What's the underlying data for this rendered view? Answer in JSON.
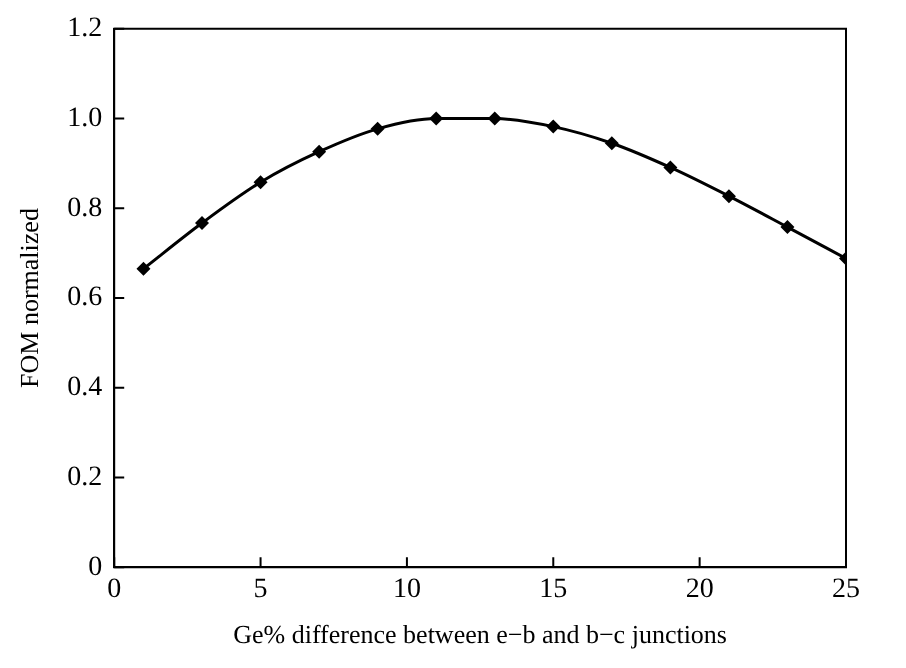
{
  "chart_data": {
    "type": "line",
    "xlabel": "Ge% difference between e−b and b−c junctions",
    "ylabel": "FOM normalized",
    "x": [
      1,
      3,
      5,
      7,
      9,
      11,
      13,
      15,
      17,
      19,
      21,
      23,
      25
    ],
    "series": [
      {
        "color": "#000000",
        "values": [
          0.665,
          0.767,
          0.858,
          0.926,
          0.977,
          1.0,
          1.0,
          0.982,
          0.945,
          0.891,
          0.827,
          0.758,
          0.688
        ]
      }
    ],
    "xlim": [
      0,
      25
    ],
    "xticks": [
      0,
      5,
      10,
      15,
      20,
      25
    ],
    "ylim": [
      0,
      1.2
    ],
    "yticks": [
      {
        "value": 0,
        "label": "0"
      },
      0.2,
      0.4,
      0.6,
      0.8,
      {
        "value": 1,
        "label": "1.0"
      },
      1.2
    ],
    "grid": false,
    "legend": false,
    "marker": "diamond",
    "line_style": "solid"
  }
}
